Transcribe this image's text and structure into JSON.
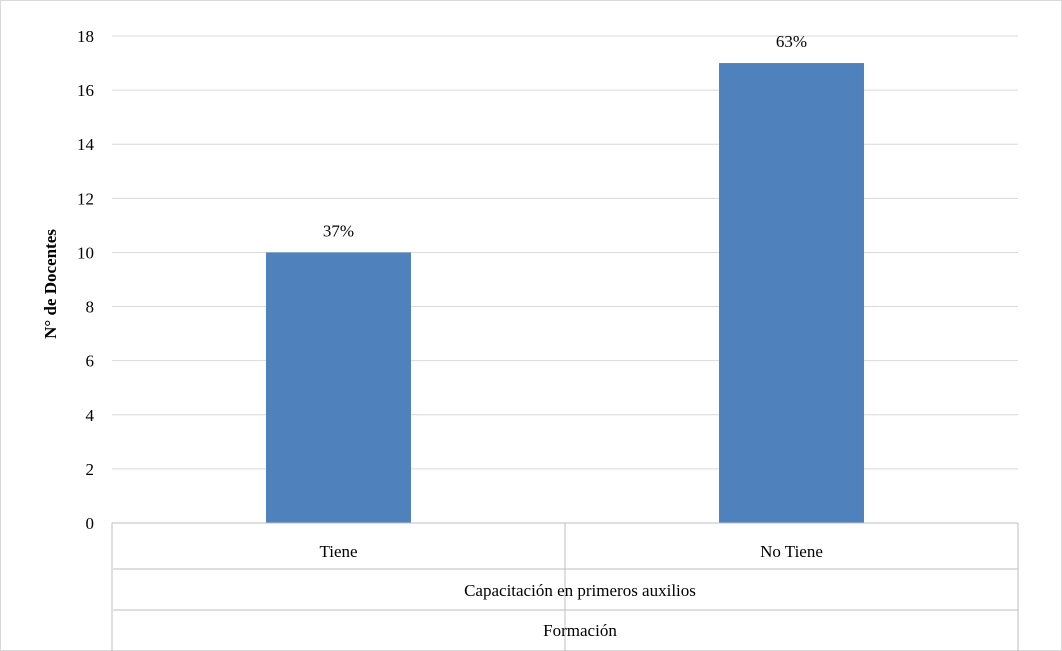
{
  "chart_data": {
    "type": "bar",
    "categories": [
      "Tiene",
      "No Tiene"
    ],
    "values": [
      10,
      17
    ],
    "data_labels": [
      "37%",
      "63%"
    ],
    "ylabel": "N° de Docentes",
    "xlabel_group": "Capacitación en primeros auxilios",
    "xlabel": "Formación",
    "ylim": [
      0,
      18
    ],
    "yticks": [
      "0",
      "2",
      "4",
      "6",
      "8",
      "10",
      "12",
      "14",
      "16",
      "18"
    ],
    "grid": true,
    "legend": "none",
    "colors": {
      "bar": "#4f81bd",
      "grid": "#d9d9d9",
      "axis": "#bfbfbf"
    }
  }
}
